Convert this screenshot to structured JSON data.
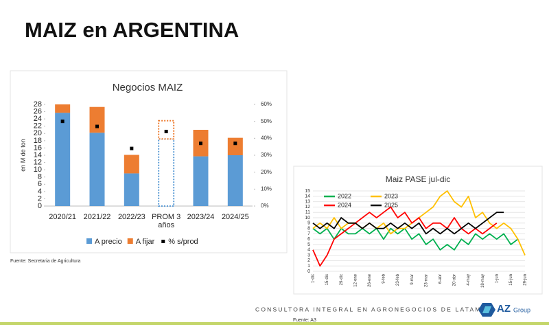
{
  "title": "MAIZ en ARGENTINA",
  "chart_data": [
    {
      "type": "bar",
      "stacked": true,
      "title": "Negocios MAIZ",
      "y_label": "en M de ton",
      "categories": [
        "2020/21",
        "2021/22",
        "2022/23",
        "PROM 3 años",
        "2023/24",
        "2024/25"
      ],
      "dashed_indices": [
        3
      ],
      "series": [
        {
          "name": "A precio",
          "color": "#5b9bd5",
          "values": [
            25.7,
            20.2,
            9,
            18.5,
            13.7,
            14
          ]
        },
        {
          "name": "A fijar",
          "color": "#ed7d31",
          "values": [
            2.3,
            7.1,
            5.1,
            5,
            7.3,
            4.8
          ]
        },
        {
          "name": "% s/prod",
          "color": "#000000",
          "type": "scatter",
          "axis": "y2",
          "values": [
            50,
            47,
            34,
            44,
            37,
            37
          ]
        }
      ],
      "ylim": [
        0,
        28
      ],
      "yticks": [
        0,
        2,
        4,
        6,
        8,
        10,
        12,
        14,
        16,
        18,
        20,
        22,
        24,
        26,
        28
      ],
      "y2lim": [
        0,
        60
      ],
      "y2ticks": [
        {
          "value": 0,
          "label": "0%"
        },
        {
          "value": 10,
          "label": "10%"
        },
        {
          "value": 20,
          "label": "20%"
        },
        {
          "value": 30,
          "label": "30%"
        },
        {
          "value": 40,
          "label": "40%"
        },
        {
          "value": 50,
          "label": "50%"
        },
        {
          "value": 60,
          "label": "60%"
        }
      ],
      "legend": "bottom",
      "source": "Fuente: Secretaria de Agricultura"
    },
    {
      "type": "line",
      "title": "Maiz PASE jul-dic",
      "categories": [
        "1-dic",
        null,
        "15-dic",
        null,
        "29-dic",
        null,
        "12-ene",
        null,
        "26-ene",
        null,
        "9-feb",
        null,
        "23-feb",
        null,
        "9-mar",
        null,
        "23-mar",
        null,
        "6-abr",
        null,
        "20-abr",
        null,
        "4-may",
        null,
        "18-may",
        null,
        "1-jun",
        null,
        "15-jun",
        null,
        "29-jun"
      ],
      "series": [
        {
          "name": "2022",
          "color": "#00b050",
          "values": [
            8,
            7,
            8,
            6,
            8,
            7,
            7,
            8,
            7,
            8,
            6,
            8,
            7,
            8,
            6,
            7,
            5,
            6,
            4,
            5,
            4,
            6,
            5,
            7,
            6,
            7,
            6,
            7,
            5,
            6,
            null
          ]
        },
        {
          "name": "2023",
          "color": "#ffc000",
          "values": [
            8,
            9,
            8,
            10,
            8,
            9,
            9,
            8,
            9,
            8,
            9,
            7,
            8,
            8,
            9,
            10,
            11,
            12,
            14,
            15,
            13,
            12,
            14,
            10,
            11,
            9,
            8,
            9,
            8,
            6,
            3
          ]
        },
        {
          "name": "2024",
          "color": "#ff0000",
          "values": [
            4,
            1,
            3,
            6,
            7,
            8,
            9,
            10,
            11,
            10,
            11,
            12,
            10,
            11,
            9,
            10,
            8,
            9,
            9,
            8,
            10,
            8,
            7,
            8,
            7,
            8,
            9,
            null,
            null,
            null,
            null
          ]
        },
        {
          "name": "2025",
          "color": "#000000",
          "values": [
            9,
            8,
            9,
            8,
            10,
            9,
            9,
            8,
            9,
            8,
            8,
            9,
            8,
            9,
            8,
            9,
            7,
            8,
            7,
            8,
            7,
            8,
            9,
            8,
            9,
            10,
            11,
            11,
            null,
            null,
            null
          ]
        }
      ],
      "ylim": [
        0,
        15
      ],
      "yticks": [
        0,
        1,
        2,
        3,
        4,
        5,
        6,
        7,
        8,
        9,
        10,
        11,
        12,
        13,
        14,
        15
      ],
      "grid": true,
      "legend": "top"
    }
  ],
  "footer": {
    "company": "CONSULTORA INTEGRAL EN AGRONEGOCIOS DE LATAM",
    "source": "Fuente: A3",
    "logo_main": "AZ",
    "logo_sub": "Group"
  }
}
